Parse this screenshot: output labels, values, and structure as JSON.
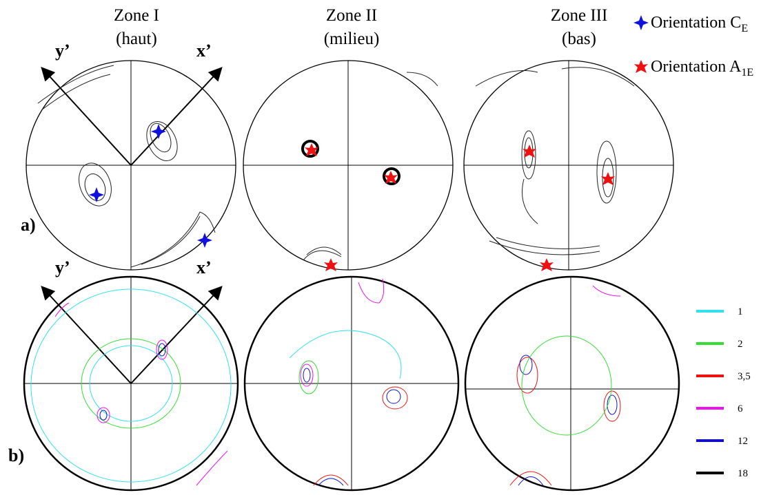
{
  "zones": [
    {
      "title": "Zone I",
      "subtitle": "(haut)"
    },
    {
      "title": "Zone II",
      "subtitle": "(milieu)"
    },
    {
      "title": "Zone III",
      "subtitle": "(bas)"
    }
  ],
  "orientations": [
    {
      "label": "Orientation C",
      "subscript": "E",
      "color": "#1010e0"
    },
    {
      "label": "Orientation A",
      "subscript": "1E",
      "color": "#ee1111"
    }
  ],
  "panels": [
    "a)",
    "b)"
  ],
  "axes": {
    "y": "y’",
    "x": "x’"
  },
  "contour_levels": [
    {
      "label": "1",
      "color": "#33e0f0"
    },
    {
      "label": "2",
      "color": "#33dd33"
    },
    {
      "label": "3,5",
      "color": "#ee1111"
    },
    {
      "label": "6",
      "color": "#ee11ee"
    },
    {
      "label": "12",
      "color": "#1111cc"
    },
    {
      "label": "18",
      "color": "#000000"
    }
  ]
}
